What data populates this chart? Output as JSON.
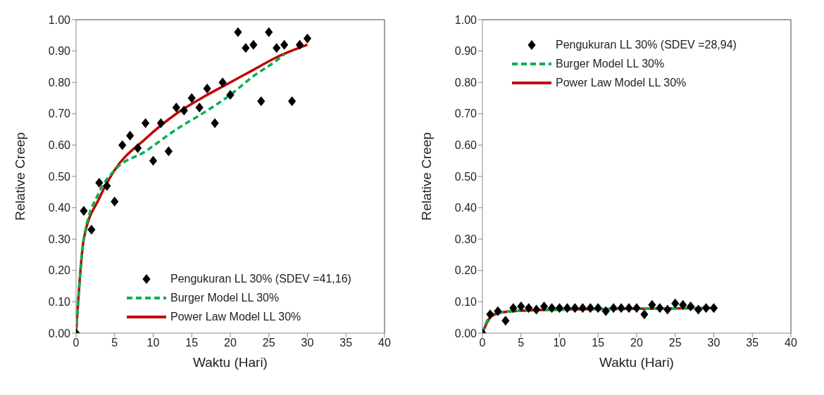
{
  "chart_data": [
    {
      "type": "scatter",
      "xlabel": "Waktu (Hari)",
      "ylabel": "Relative Creep",
      "xlim": [
        0,
        40
      ],
      "xticks": [
        0,
        5,
        10,
        15,
        20,
        25,
        30,
        35,
        40
      ],
      "ylim": [
        0,
        1
      ],
      "yticks": [
        {
          "value": 0,
          "label": "0.00"
        },
        {
          "value": 0.1,
          "label": "0.10"
        },
        {
          "value": 0.2,
          "label": "0.20"
        },
        {
          "value": 0.3,
          "label": "0.30"
        },
        {
          "value": 0.4,
          "label": "0.40"
        },
        {
          "value": 0.5,
          "label": "0.50"
        },
        {
          "value": 0.6,
          "label": "0.60"
        },
        {
          "value": 0.7,
          "label": "0.70"
        },
        {
          "value": 0.8,
          "label": "0.80"
        },
        {
          "value": 0.9,
          "label": "0.90"
        },
        {
          "value": 1,
          "label": "1.00"
        }
      ],
      "grid": false,
      "legend": "bottom right",
      "series": [
        {
          "name": "Pengukuran LL 30% (SDEV =41,16)",
          "type": "scatter",
          "marker": "diamond",
          "color": "#000000",
          "x": [
            0,
            1,
            2,
            3,
            4,
            5,
            6,
            7,
            8,
            9,
            10,
            11,
            12,
            13,
            14,
            15,
            16,
            17,
            18,
            19,
            20,
            21,
            22,
            23,
            24,
            25,
            26,
            27,
            28,
            29,
            30
          ],
          "values": [
            0,
            0.39,
            0.33,
            0.48,
            0.47,
            0.42,
            0.6,
            0.63,
            0.59,
            0.67,
            0.55,
            0.67,
            0.58,
            0.72,
            0.71,
            0.75,
            0.72,
            0.78,
            0.67,
            0.8,
            0.76,
            0.96,
            0.91,
            0.92,
            0.74,
            0.96,
            0.91,
            0.92,
            0.74,
            0.92,
            0.94
          ]
        },
        {
          "name": "Burger Model LL 30%",
          "type": "line",
          "line_style": "dashed",
          "marker": "none",
          "color": "#00b050",
          "x": [
            0,
            1,
            3,
            5,
            9,
            13,
            17,
            20,
            23,
            26,
            27
          ],
          "values": [
            0,
            0.3,
            0.45,
            0.52,
            0.58,
            0.65,
            0.71,
            0.76,
            0.82,
            0.87,
            0.89
          ]
        },
        {
          "name": "Power Law Model LL 30%",
          "type": "line",
          "line_style": "solid",
          "marker": "none",
          "color": "#c00000",
          "x": [
            0,
            1,
            3,
            5,
            9,
            13,
            17,
            20,
            23,
            26,
            30
          ],
          "values": [
            0,
            0.3,
            0.43,
            0.52,
            0.62,
            0.7,
            0.76,
            0.8,
            0.84,
            0.88,
            0.92
          ]
        }
      ]
    },
    {
      "type": "scatter",
      "xlabel": "Waktu (Hari)",
      "ylabel": "Relative Creep",
      "xlim": [
        0,
        40
      ],
      "xticks": [
        0,
        5,
        10,
        15,
        20,
        25,
        30,
        35,
        40
      ],
      "ylim": [
        0,
        1
      ],
      "yticks": [
        {
          "value": 0,
          "label": "0.00"
        },
        {
          "value": 0.1,
          "label": "0.10"
        },
        {
          "value": 0.2,
          "label": "0.20"
        },
        {
          "value": 0.3,
          "label": "0.30"
        },
        {
          "value": 0.4,
          "label": "0.40"
        },
        {
          "value": 0.5,
          "label": "0.50"
        },
        {
          "value": 0.6,
          "label": "0.60"
        },
        {
          "value": 0.7,
          "label": "0.70"
        },
        {
          "value": 0.8,
          "label": "0.80"
        },
        {
          "value": 0.9,
          "label": "0.90"
        },
        {
          "value": 1,
          "label": "1.00"
        }
      ],
      "grid": false,
      "legend": "top",
      "series": [
        {
          "name": "Pengukuran LL 30% (SDEV =28,94)",
          "type": "scatter",
          "marker": "diamond",
          "color": "#000000",
          "x": [
            0,
            1,
            2,
            3,
            4,
            5,
            6,
            7,
            8,
            9,
            10,
            11,
            12,
            13,
            14,
            15,
            16,
            17,
            18,
            19,
            20,
            21,
            22,
            23,
            24,
            25,
            26,
            27,
            28,
            29,
            30
          ],
          "values": [
            0,
            0.06,
            0.07,
            0.04,
            0.08,
            0.085,
            0.08,
            0.075,
            0.085,
            0.08,
            0.08,
            0.08,
            0.08,
            0.08,
            0.08,
            0.08,
            0.07,
            0.08,
            0.08,
            0.08,
            0.08,
            0.06,
            0.09,
            0.08,
            0.075,
            0.095,
            0.09,
            0.085,
            0.075,
            0.08,
            0.08
          ]
        },
        {
          "name": "Burger Model LL 30%",
          "type": "line",
          "line_style": "dashed",
          "marker": "none",
          "color": "#00b050",
          "x": [
            0,
            1,
            2,
            4,
            10,
            20,
            30
          ],
          "values": [
            0,
            0.055,
            0.065,
            0.07,
            0.075,
            0.078,
            0.08
          ]
        },
        {
          "name": "Power Law Model LL 30%",
          "type": "line",
          "line_style": "solid",
          "marker": "none",
          "color": "#c00000",
          "x": [
            0,
            1,
            2,
            4,
            10,
            20,
            30
          ],
          "values": [
            0,
            0.05,
            0.063,
            0.07,
            0.075,
            0.078,
            0.08
          ]
        }
      ]
    }
  ]
}
